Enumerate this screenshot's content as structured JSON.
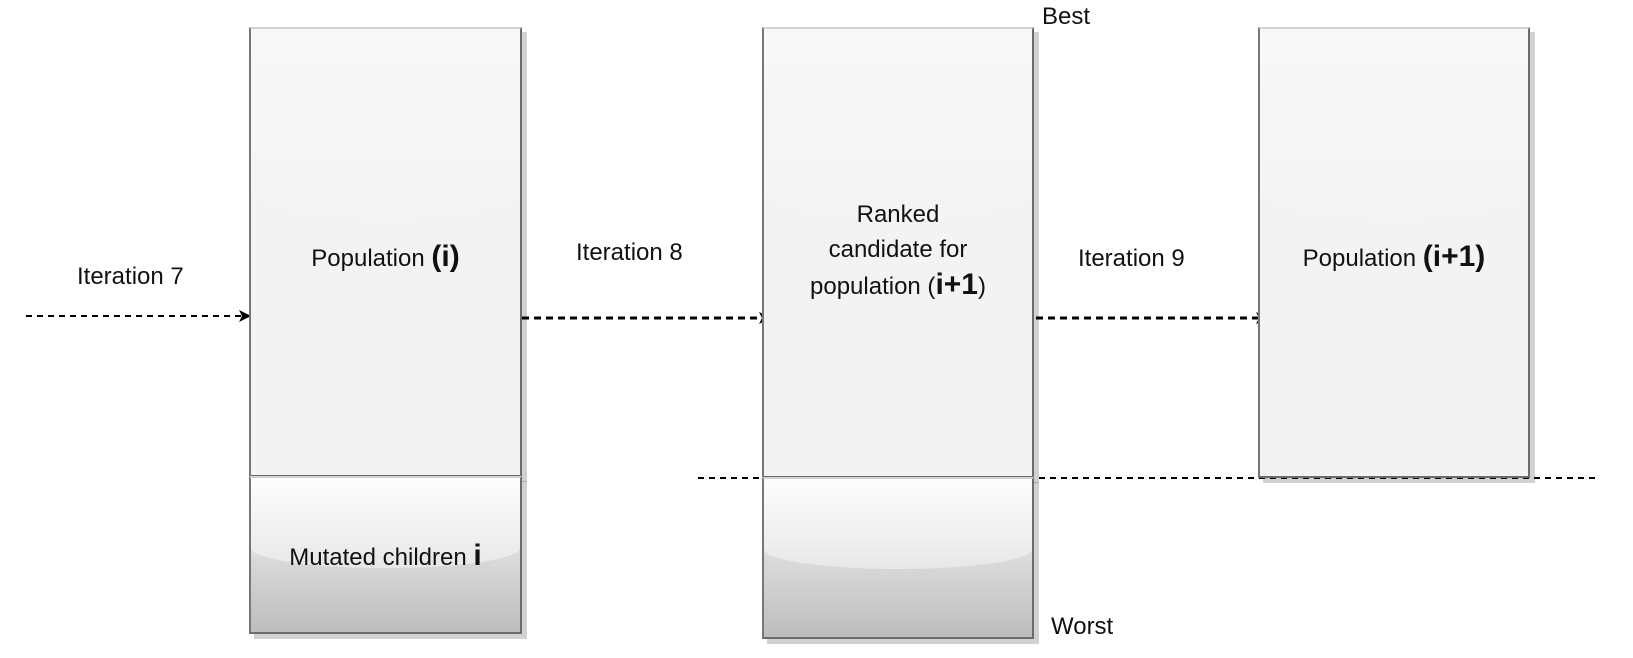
{
  "boxes": {
    "population_i": {
      "label": "Population",
      "suffix": "(i)"
    },
    "mutated_children": {
      "label": "Mutated children",
      "suffix": "i"
    },
    "ranked_candidates": {
      "line1": "Ranked",
      "line2": "candidate for",
      "line3": "population (",
      "suffix": "i+1",
      "close": ")"
    },
    "population_next": {
      "label": "Population",
      "suffix": "(i+1)"
    }
  },
  "arrows": [
    {
      "label": "Iteration 7"
    },
    {
      "label": "Iteration 8"
    },
    {
      "label": "Iteration 9"
    }
  ],
  "rank_labels": {
    "best": "Best",
    "worst": "Worst"
  },
  "colors": {
    "box_fill": "#f3f3f3",
    "box_border": "#6b6b6b",
    "line": "#000000",
    "shadow": "#cfcfcf"
  }
}
